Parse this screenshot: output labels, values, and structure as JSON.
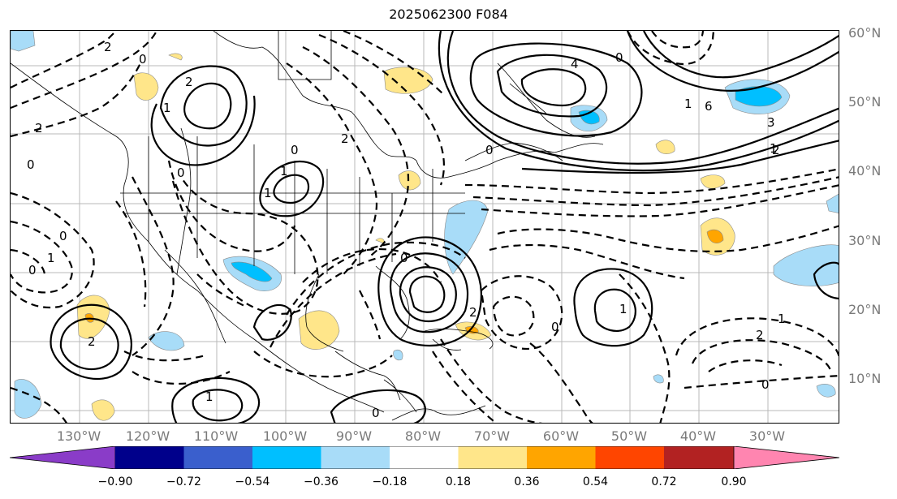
{
  "title": "2025062300 F084",
  "lat_labels": [
    "60°N",
    "50°N",
    "40°N",
    "30°N",
    "20°N",
    "10°N"
  ],
  "lon_labels": [
    "130°W",
    "120°W",
    "110°W",
    "100°W",
    "90°W",
    "80°W",
    "70°W",
    "60°W",
    "50°W",
    "40°W",
    "30°W"
  ],
  "colorbar": {
    "colors": [
      "#8a3cc8",
      "#00008b",
      "#3a5fcd",
      "#00bfff",
      "#a8dcf8",
      "#ffffff",
      "#ffe68a",
      "#ffa500",
      "#ff4500",
      "#b22222",
      "#ff85b0"
    ],
    "ticks": [
      "−0.90",
      "−0.72",
      "−0.54",
      "−0.36",
      "−0.18",
      "0.18",
      "0.36",
      "0.54",
      "0.72",
      "0.90"
    ]
  },
  "contour_labels": [
    "2",
    "0",
    "2",
    "4",
    "0",
    "1",
    "6",
    "3",
    "1",
    "0",
    "0",
    "2",
    "0",
    "2",
    "1",
    "1",
    "1",
    "0",
    "0",
    "0",
    "1",
    "0",
    "2",
    "0",
    "2",
    "1",
    "2",
    "0",
    "1",
    "1",
    "2",
    "0"
  ]
}
